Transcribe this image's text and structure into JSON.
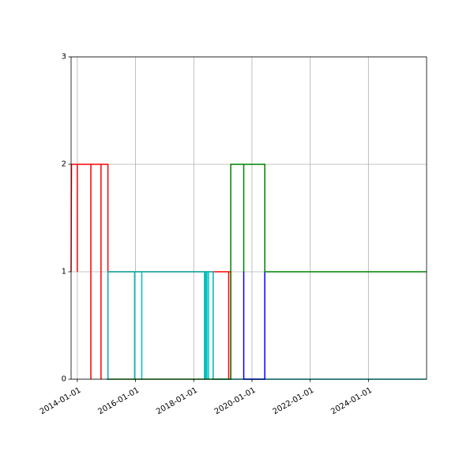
{
  "chart_data": {
    "type": "line",
    "drawstyle": "steps-post",
    "title": "",
    "xlabel": "",
    "ylabel": "",
    "x_axis_type": "date",
    "xlim": [
      "2013-10-15",
      "2025-12-31"
    ],
    "ylim": [
      0,
      3
    ],
    "grid": true,
    "legend": "none",
    "x_ticks": [
      "2014-01-01",
      "2016-01-01",
      "2018-01-01",
      "2020-01-01",
      "2022-01-01",
      "2024-01-01"
    ],
    "x_tick_rotation_deg": 30,
    "y_ticks": [
      0,
      1,
      2,
      3
    ],
    "series": [
      {
        "color": "#ff0000",
        "points": [
          [
            "2013-10-15",
            1
          ],
          [
            "2013-10-20",
            2
          ],
          [
            "2014-01-01",
            2
          ],
          [
            "2014-01-01",
            1
          ],
          [
            "2014-01-01",
            2
          ],
          [
            "2014-06-20",
            2
          ],
          [
            "2014-06-20",
            0
          ],
          [
            "2014-06-20",
            2
          ],
          [
            "2014-10-25",
            2
          ],
          [
            "2014-10-25",
            0
          ],
          [
            "2014-10-25",
            2
          ],
          [
            "2015-01-20",
            2
          ],
          [
            "2015-01-20",
            0
          ],
          [
            "2015-01-20",
            1
          ],
          [
            "2018-09-01",
            1
          ],
          [
            "2018-09-01",
            0
          ],
          [
            "2018-09-01",
            1
          ],
          [
            "2019-03-15",
            1
          ],
          [
            "2019-03-15",
            0
          ],
          [
            "2019-03-15",
            1
          ],
          [
            "2019-04-10",
            1
          ],
          [
            "2019-04-10",
            0
          ]
        ]
      },
      {
        "color": "#00bfbf",
        "points": [
          [
            "2015-01-01",
            0
          ],
          [
            "2015-01-20",
            0
          ],
          [
            "2015-01-20",
            1
          ],
          [
            "2015-12-20",
            1
          ],
          [
            "2015-12-20",
            0
          ],
          [
            "2015-12-20",
            1
          ],
          [
            "2016-03-20",
            1
          ],
          [
            "2016-03-20",
            0
          ],
          [
            "2016-03-20",
            1
          ],
          [
            "2018-05-15",
            1
          ],
          [
            "2018-05-15",
            0
          ],
          [
            "2018-05-15",
            1
          ],
          [
            "2018-05-25",
            1
          ],
          [
            "2018-05-25",
            0
          ],
          [
            "2018-05-25",
            1
          ],
          [
            "2018-06-05",
            1
          ],
          [
            "2018-06-05",
            0
          ],
          [
            "2018-06-05",
            1
          ],
          [
            "2018-06-15",
            1
          ],
          [
            "2018-06-15",
            0
          ],
          [
            "2018-06-15",
            1
          ],
          [
            "2018-07-05",
            1
          ],
          [
            "2018-07-05",
            0
          ],
          [
            "2018-07-05",
            1
          ],
          [
            "2018-09-01",
            1
          ],
          [
            "2018-09-01",
            0
          ],
          [
            "2025-12-31",
            0
          ]
        ]
      },
      {
        "color": "#0000ff",
        "points": [
          [
            "2019-09-20",
            0
          ],
          [
            "2019-09-20",
            1
          ],
          [
            "2019-09-20",
            0
          ],
          [
            "2020-06-10",
            0
          ],
          [
            "2020-06-10",
            1
          ],
          [
            "2020-06-10",
            0
          ]
        ]
      },
      {
        "color": "#008000",
        "points": [
          [
            "2015-01-20",
            0
          ],
          [
            "2019-04-10",
            0
          ],
          [
            "2019-04-10",
            2
          ],
          [
            "2019-09-20",
            2
          ],
          [
            "2019-09-20",
            1
          ],
          [
            "2019-09-20",
            2
          ],
          [
            "2020-06-10",
            2
          ],
          [
            "2020-06-10",
            1
          ],
          [
            "2025-12-31",
            1
          ]
        ]
      }
    ]
  }
}
